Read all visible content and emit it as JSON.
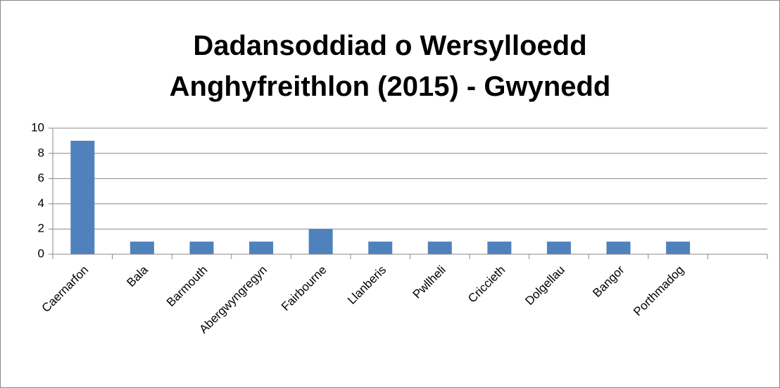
{
  "chart_data": {
    "type": "bar",
    "title": "Dadansoddiad o Wersylloedd Anghyfreithlon (2015) - Gwynedd",
    "categories": [
      "Caernarfon",
      "Bala",
      "Barmouth",
      "Abergwyngregyn",
      "Fairbourne",
      "Llanberis",
      "Pwllheli",
      "Criccieth",
      "Dolgellau",
      "Bangor",
      "Porthmadog",
      null
    ],
    "values": [
      9,
      1,
      1,
      1,
      2,
      1,
      1,
      1,
      1,
      1,
      1,
      null
    ],
    "color": "#4f81bd",
    "ylim": [
      0,
      10
    ],
    "yticks": [
      0,
      2,
      4,
      6,
      8,
      10
    ],
    "grid": true
  }
}
